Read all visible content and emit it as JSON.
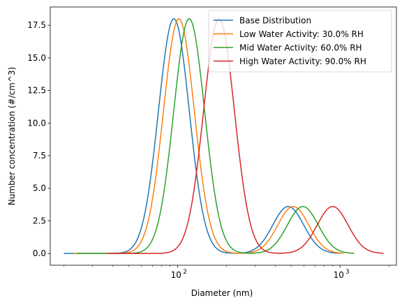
{
  "chart_data": {
    "type": "line",
    "title": "",
    "xlabel": "Diameter (nm)",
    "ylabel": "Number concentration (#/cm^3)",
    "xscale": "log",
    "xlim": [
      16.5,
      2220
    ],
    "ylim": [
      -0.9,
      18.9
    ],
    "yticks": [
      0.0,
      2.5,
      5.0,
      7.5,
      10.0,
      12.5,
      15.0,
      17.5
    ],
    "ytick_labels": [
      "0.0",
      "2.5",
      "5.0",
      "7.5",
      "10.0",
      "12.5",
      "15.0",
      "17.5"
    ],
    "xticks": [
      100,
      1000
    ],
    "xtick_labels": [
      "10",
      "10"
    ],
    "xtick_exponents": [
      "2",
      "3"
    ],
    "grid": false,
    "legend_position": "top-right",
    "series": [
      {
        "name": "Base Distribution",
        "color": "#1f77b4",
        "x_range": [
          20,
          1000
        ],
        "modes": [
          {
            "peak_x": 95,
            "peak_y": 18.0,
            "width_dex": 0.095
          },
          {
            "peak_x": 480,
            "peak_y": 3.6,
            "width_dex": 0.095
          }
        ]
      },
      {
        "name": "Low Water Activity: 30.0% RH",
        "color": "#ff7f0e",
        "x_range": [
          23,
          1050
        ],
        "modes": [
          {
            "peak_x": 102,
            "peak_y": 18.0,
            "width_dex": 0.095
          },
          {
            "peak_x": 515,
            "peak_y": 3.6,
            "width_dex": 0.095
          }
        ]
      },
      {
        "name": "Mid Water Activity: 60.0% RH",
        "color": "#2ca02c",
        "x_range": [
          24,
          1220
        ],
        "modes": [
          {
            "peak_x": 118,
            "peak_y": 18.0,
            "width_dex": 0.095
          },
          {
            "peak_x": 590,
            "peak_y": 3.6,
            "width_dex": 0.095
          }
        ]
      },
      {
        "name": "High Water Activity: 90.0% RH",
        "color": "#d62728",
        "x_range": [
          37,
          1850
        ],
        "modes": [
          {
            "peak_x": 180,
            "peak_y": 18.0,
            "width_dex": 0.095
          },
          {
            "peak_x": 900,
            "peak_y": 3.6,
            "width_dex": 0.095
          }
        ]
      }
    ]
  }
}
